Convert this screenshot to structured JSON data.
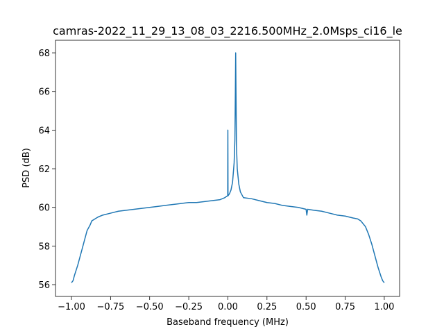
{
  "chart_data": {
    "type": "line",
    "title": "camras-2022_11_29_13_08_03_2216.500MHz_2.0Msps_ci16_le",
    "x_label": "Baseband frequency (MHz)",
    "y_label": "PSD (dB)",
    "color": "#1f77b4",
    "x": [
      -1.0,
      -0.99,
      -0.98,
      -0.96,
      -0.95,
      -0.93,
      -0.92,
      -0.9,
      -0.88,
      -0.87,
      -0.85,
      -0.83,
      -0.8,
      -0.75,
      -0.7,
      -0.65,
      -0.6,
      -0.55,
      -0.5,
      -0.45,
      -0.4,
      -0.35,
      -0.3,
      -0.25,
      -0.2,
      -0.15,
      -0.1,
      -0.05,
      -0.02,
      -0.002,
      -0.001,
      0.0,
      0.001,
      0.01,
      0.02,
      0.03,
      0.04,
      0.045,
      0.048,
      0.05,
      0.052,
      0.055,
      0.06,
      0.07,
      0.08,
      0.1,
      0.15,
      0.2,
      0.25,
      0.3,
      0.35,
      0.4,
      0.45,
      0.5,
      0.505,
      0.51,
      0.55,
      0.6,
      0.65,
      0.7,
      0.75,
      0.8,
      0.83,
      0.85,
      0.87,
      0.88,
      0.9,
      0.92,
      0.93,
      0.95,
      0.96,
      0.98,
      0.99,
      1.0
    ],
    "values": [
      56.1,
      56.2,
      56.5,
      57.0,
      57.3,
      57.9,
      58.2,
      58.8,
      59.1,
      59.3,
      59.4,
      59.5,
      59.6,
      59.7,
      59.8,
      59.85,
      59.9,
      59.95,
      60.0,
      60.05,
      60.1,
      60.15,
      60.2,
      60.25,
      60.25,
      60.3,
      60.35,
      60.4,
      60.5,
      60.6,
      60.6,
      64.0,
      60.6,
      60.7,
      60.9,
      61.3,
      62.3,
      63.5,
      66.0,
      68.0,
      66.0,
      63.2,
      62.0,
      61.2,
      60.8,
      60.5,
      60.45,
      60.35,
      60.25,
      60.2,
      60.1,
      60.05,
      60.0,
      59.9,
      59.6,
      59.9,
      59.85,
      59.8,
      59.7,
      59.6,
      59.55,
      59.45,
      59.4,
      59.3,
      59.1,
      59.0,
      58.6,
      58.1,
      57.8,
      57.2,
      56.9,
      56.4,
      56.2,
      56.1
    ],
    "xlim": [
      -1.102,
      1.098
    ],
    "ylim": [
      55.39,
      68.65
    ],
    "xticks": [
      {
        "value": -1,
        "label": "−1.00"
      },
      {
        "value": -0.75,
        "label": "−0.75"
      },
      {
        "value": -0.5,
        "label": "−0.50"
      },
      {
        "value": -0.25,
        "label": "−0.25"
      },
      {
        "value": 0,
        "label": "0.00"
      },
      {
        "value": 0.25,
        "label": "0.25"
      },
      {
        "value": 0.5,
        "label": "0.50"
      },
      {
        "value": 0.75,
        "label": "0.75"
      },
      {
        "value": 1,
        "label": "1.00"
      }
    ],
    "yticks": [
      56,
      58,
      60,
      62,
      64,
      66,
      68
    ]
  }
}
